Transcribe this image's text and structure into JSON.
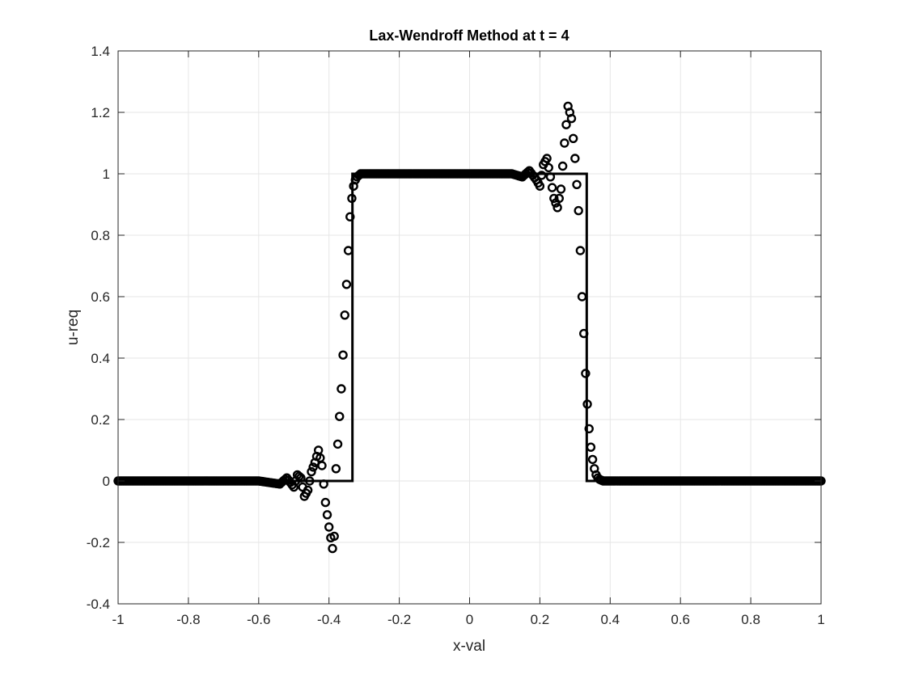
{
  "chart_data": {
    "type": "line+scatter",
    "title": "Lax-Wendroff Method at t = 4",
    "xlabel": "x-val",
    "ylabel": "u-req",
    "xlim": [
      -1,
      1
    ],
    "ylim": [
      -0.4,
      1.4
    ],
    "xticks": [
      "-1",
      "-0.8",
      "-0.6",
      "-0.4",
      "-0.2",
      "0",
      "0.2",
      "0.4",
      "0.6",
      "0.8",
      "1"
    ],
    "yticks": [
      "-0.4",
      "-0.2",
      "0",
      "0.2",
      "0.4",
      "0.6",
      "0.8",
      "1",
      "1.2",
      "1.4"
    ],
    "grid": true,
    "series": [
      {
        "style": "solid-line",
        "color": "#000000",
        "x": [
          -1,
          -0.3333,
          -0.3333,
          0.3333,
          0.3333,
          1
        ],
        "y": [
          0,
          0,
          1,
          1,
          0,
          0
        ]
      },
      {
        "style": "circle-markers",
        "color": "#000000",
        "x_range": [
          -1,
          1
        ],
        "point_count": 401,
        "profile_x": [
          -1,
          -0.6,
          -0.54,
          -0.52,
          -0.5,
          -0.49,
          -0.48,
          -0.47,
          -0.46,
          -0.45,
          -0.44,
          -0.43,
          -0.42,
          -0.41,
          -0.4,
          -0.39,
          -0.385,
          -0.38,
          -0.375,
          -0.37,
          -0.365,
          -0.36,
          -0.355,
          -0.35,
          -0.345,
          -0.34,
          -0.335,
          -0.33,
          -0.325,
          -0.32,
          -0.31,
          -0.3,
          -0.28,
          -0.26,
          -0.2,
          0,
          0.08,
          0.12,
          0.15,
          0.17,
          0.19,
          0.2,
          0.21,
          0.22,
          0.23,
          0.24,
          0.25,
          0.26,
          0.27,
          0.28,
          0.29,
          0.3,
          0.31,
          0.315,
          0.32,
          0.325,
          0.33,
          0.335,
          0.34,
          0.345,
          0.35,
          0.355,
          0.36,
          0.365,
          0.37,
          0.38,
          0.4,
          1
        ],
        "profile_y": [
          0,
          0,
          -0.01,
          0.01,
          -0.02,
          0.02,
          0.01,
          -0.05,
          -0.03,
          0.03,
          0.06,
          0.1,
          0.05,
          -0.07,
          -0.15,
          -0.22,
          -0.18,
          0.04,
          0.12,
          0.21,
          0.3,
          0.41,
          0.54,
          0.64,
          0.75,
          0.86,
          0.92,
          0.96,
          0.98,
          0.99,
          1.0,
          1.0,
          1.0,
          1.0,
          1.0,
          1.0,
          1.0,
          1.0,
          0.99,
          1.01,
          0.98,
          0.96,
          1.03,
          1.05,
          0.99,
          0.92,
          0.89,
          0.95,
          1.1,
          1.22,
          1.18,
          1.05,
          0.88,
          0.75,
          0.6,
          0.48,
          0.35,
          0.25,
          0.17,
          0.11,
          0.07,
          0.04,
          0.02,
          0.01,
          0.005,
          0.0,
          0.0,
          0.0
        ]
      }
    ]
  }
}
